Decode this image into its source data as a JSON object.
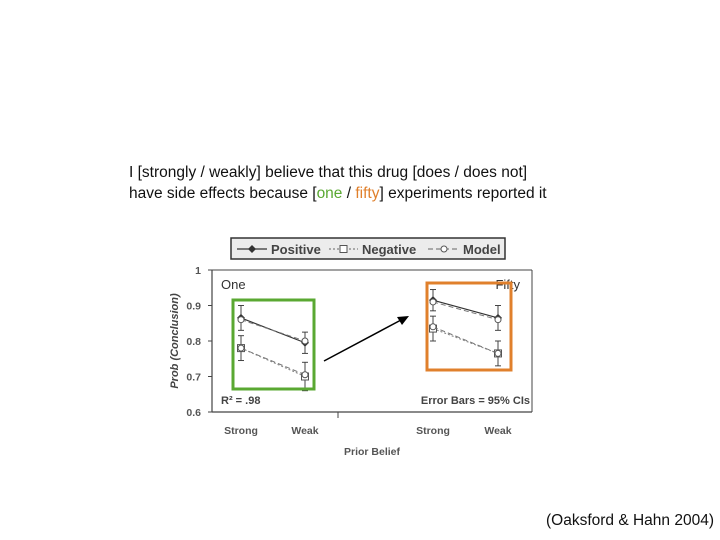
{
  "caption": {
    "line1": "I [strongly / weakly] believe that this drug [does / does not]",
    "line2_pre": "have side effects because [",
    "line2_one": "one",
    "line2_sep": " / ",
    "line2_fifty": "fifty",
    "line2_post": "] experiments reported it"
  },
  "citation": "(Oaksford & Hahn 2004)",
  "colors": {
    "one_box": "#5aa832",
    "fifty_box": "#e0802c",
    "positive": "#333333",
    "negative": "#888888"
  },
  "chart_data": {
    "type": "line",
    "ylabel": "Prob (Conclusion)",
    "xlabel": "Prior  Belief",
    "ylim": [
      0.6,
      1.0
    ],
    "yticks": [
      "1",
      "0.9",
      "0.8",
      "0.7",
      "0.6"
    ],
    "legend": [
      "Positive",
      "Negative",
      "Model"
    ],
    "legend_position": "top",
    "annotations": {
      "r2": "R² = .98",
      "error_bars": "Error  Bars  =  95%  CIs"
    },
    "panels": [
      {
        "label": "One",
        "categories": [
          "Strong",
          "Weak"
        ],
        "series": [
          {
            "name": "Positive",
            "values": [
              0.865,
              0.795
            ],
            "err": [
              0.035,
              0.03
            ]
          },
          {
            "name": "Negative",
            "values": [
              0.78,
              0.7
            ],
            "err": [
              0.035,
              0.04
            ]
          },
          {
            "name": "Model",
            "values": [
              0.86,
              0.8
            ],
            "line": "positive"
          },
          {
            "name": "Model",
            "values": [
              0.78,
              0.705
            ],
            "line": "negative"
          }
        ]
      },
      {
        "label": "Fifty",
        "categories": [
          "Strong",
          "Weak"
        ],
        "series": [
          {
            "name": "Positive",
            "values": [
              0.915,
              0.865
            ],
            "err": [
              0.03,
              0.035
            ]
          },
          {
            "name": "Negative",
            "values": [
              0.835,
              0.765
            ],
            "err": [
              0.035,
              0.035
            ]
          },
          {
            "name": "Model",
            "values": [
              0.91,
              0.86
            ],
            "line": "positive"
          },
          {
            "name": "Model",
            "values": [
              0.84,
              0.765
            ],
            "line": "negative"
          }
        ]
      }
    ]
  }
}
